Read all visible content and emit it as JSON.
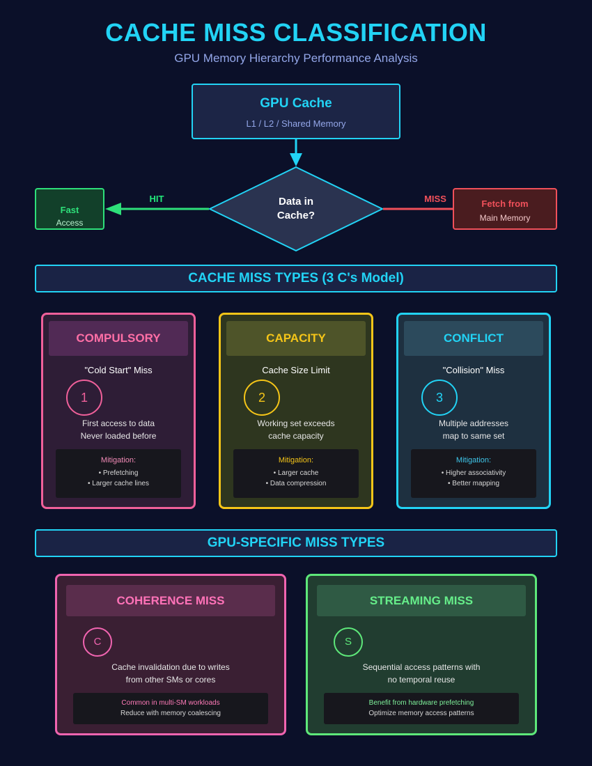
{
  "header": {
    "title": "CACHE MISS CLASSIFICATION",
    "subtitle": "GPU Memory Hierarchy Performance Analysis"
  },
  "flow": {
    "source": {
      "title": "GPU Cache",
      "subtitle": "L1 / L2 / Shared Memory"
    },
    "decision": {
      "line1": "Data in",
      "line2": "Cache?"
    },
    "hit": {
      "label": "HIT",
      "title": "Fast",
      "subtitle": "Access"
    },
    "miss": {
      "label": "MISS",
      "title": "Fetch from",
      "subtitle": "Main Memory"
    }
  },
  "section1": {
    "title": "CACHE MISS TYPES (3 C's Model)"
  },
  "miss_types": [
    {
      "title": "COMPULSORY",
      "tagline": "\"Cold Start\" Miss",
      "number": "1",
      "desc1": "First access to data",
      "desc2": "Never loaded before",
      "mitigation_label": "Mitigation:",
      "mitigations": [
        "• Prefetching",
        "• Larger cache lines"
      ]
    },
    {
      "title": "CAPACITY",
      "tagline": "Cache Size Limit",
      "number": "2",
      "desc1": "Working set exceeds",
      "desc2": "cache capacity",
      "mitigation_label": "Mitigation:",
      "mitigations": [
        "• Larger cache",
        "• Data compression"
      ]
    },
    {
      "title": "CONFLICT",
      "tagline": "\"Collision\" Miss",
      "number": "3",
      "desc1": "Multiple addresses",
      "desc2": "map to same set",
      "mitigation_label": "Mitigation:",
      "mitigations": [
        "• Higher associativity",
        "• Better mapping"
      ]
    }
  ],
  "section2": {
    "title": "GPU-SPECIFIC MISS TYPES"
  },
  "gpu_types": [
    {
      "title": "COHERENCE MISS",
      "badge": "C",
      "desc1": "Cache invalidation due to writes",
      "desc2": "from other SMs or cores",
      "note1": "Common in multi-SM workloads",
      "note2": "Reduce with memory coalescing"
    },
    {
      "title": "STREAMING MISS",
      "badge": "S",
      "desc1": "Sequential access patterns with",
      "desc2": "no temporal reuse",
      "note1": "Benefit from hardware prefetching",
      "note2": "Optimize memory access patterns"
    }
  ],
  "colors": {
    "background": "#0b1029",
    "accent_cyan": "#22d3f5",
    "hit_green": "#2ee07a",
    "miss_red": "#f0505a",
    "compulsory_pink": "#f0609a",
    "capacity_yellow": "#f5c518",
    "streaming_green": "#5ee87a"
  }
}
